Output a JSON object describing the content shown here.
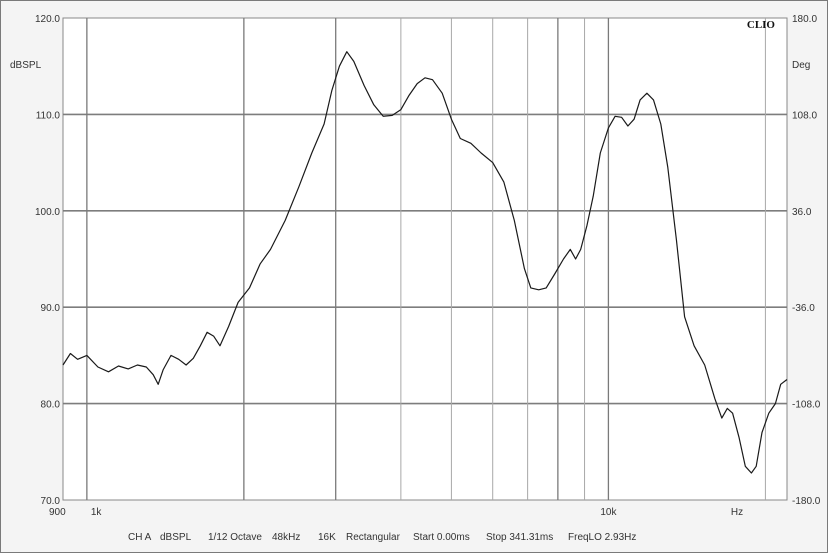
{
  "chart_data": {
    "type": "line",
    "brand": "CLIO",
    "x_scale": "log",
    "xlim": [
      900,
      22000
    ],
    "x_ticks": [
      {
        "value": 900,
        "label": "900"
      },
      {
        "value": 1000,
        "label": "1k"
      },
      {
        "value": 10000,
        "label": "10k"
      }
    ],
    "x_unit": "Hz",
    "x_gridlines": [
      1000,
      2000,
      3000,
      4000,
      5000,
      6000,
      7000,
      8000,
      9000,
      10000,
      20000
    ],
    "ylabel_left": "dBSPL",
    "ylim_left": [
      70,
      120
    ],
    "y_ticks_left": [
      "120.0",
      "110.0",
      "100.0",
      "90.0",
      "80.0",
      "70.0"
    ],
    "ylabel_right": "Deg",
    "ylim_right": [
      -180,
      180
    ],
    "y_ticks_right": [
      "180.0",
      "108.0",
      "36.0",
      "-36.0",
      "-108.0",
      "-180.0"
    ],
    "grid": true,
    "series": [
      {
        "color": "#1a1a1a",
        "points": [
          [
            900,
            84.0
          ],
          [
            930,
            85.2
          ],
          [
            960,
            84.6
          ],
          [
            1000,
            85.0
          ],
          [
            1050,
            83.8
          ],
          [
            1100,
            83.3
          ],
          [
            1150,
            83.9
          ],
          [
            1200,
            83.6
          ],
          [
            1250,
            84.0
          ],
          [
            1300,
            83.8
          ],
          [
            1340,
            83.0
          ],
          [
            1370,
            82.0
          ],
          [
            1400,
            83.5
          ],
          [
            1450,
            85.0
          ],
          [
            1500,
            84.6
          ],
          [
            1550,
            84.0
          ],
          [
            1600,
            84.7
          ],
          [
            1650,
            86.0
          ],
          [
            1700,
            87.4
          ],
          [
            1750,
            87.0
          ],
          [
            1800,
            86.0
          ],
          [
            1870,
            88.0
          ],
          [
            1950,
            90.5
          ],
          [
            2050,
            92.0
          ],
          [
            2150,
            94.5
          ],
          [
            2250,
            96.0
          ],
          [
            2400,
            99.0
          ],
          [
            2550,
            102.5
          ],
          [
            2700,
            106.0
          ],
          [
            2850,
            109.0
          ],
          [
            2950,
            112.5
          ],
          [
            3050,
            115.0
          ],
          [
            3150,
            116.5
          ],
          [
            3250,
            115.5
          ],
          [
            3400,
            113.0
          ],
          [
            3550,
            111.0
          ],
          [
            3700,
            109.8
          ],
          [
            3850,
            109.9
          ],
          [
            4000,
            110.5
          ],
          [
            4150,
            112.0
          ],
          [
            4300,
            113.2
          ],
          [
            4450,
            113.8
          ],
          [
            4600,
            113.6
          ],
          [
            4800,
            112.2
          ],
          [
            5000,
            109.5
          ],
          [
            5200,
            107.5
          ],
          [
            5450,
            107.0
          ],
          [
            5700,
            106.0
          ],
          [
            6000,
            105.0
          ],
          [
            6300,
            103.0
          ],
          [
            6600,
            99.0
          ],
          [
            6900,
            94.0
          ],
          [
            7100,
            92.0
          ],
          [
            7350,
            91.8
          ],
          [
            7600,
            92.0
          ],
          [
            7900,
            93.5
          ],
          [
            8200,
            95.0
          ],
          [
            8450,
            96.0
          ],
          [
            8650,
            95.0
          ],
          [
            8850,
            96.0
          ],
          [
            9100,
            98.5
          ],
          [
            9350,
            101.5
          ],
          [
            9650,
            106.0
          ],
          [
            10000,
            108.6
          ],
          [
            10300,
            109.8
          ],
          [
            10600,
            109.7
          ],
          [
            10900,
            108.8
          ],
          [
            11200,
            109.5
          ],
          [
            11500,
            111.5
          ],
          [
            11850,
            112.2
          ],
          [
            12200,
            111.5
          ],
          [
            12600,
            109.0
          ],
          [
            13000,
            104.5
          ],
          [
            13500,
            97.0
          ],
          [
            14000,
            89.0
          ],
          [
            14600,
            86.0
          ],
          [
            15300,
            84.0
          ],
          [
            16000,
            80.5
          ],
          [
            16500,
            78.5
          ],
          [
            16900,
            79.5
          ],
          [
            17300,
            79.0
          ],
          [
            17800,
            76.5
          ],
          [
            18300,
            73.5
          ],
          [
            18800,
            72.8
          ],
          [
            19200,
            73.5
          ],
          [
            19700,
            77.0
          ],
          [
            20300,
            79.0
          ],
          [
            20900,
            80.0
          ],
          [
            21400,
            82.0
          ],
          [
            22000,
            82.5
          ]
        ]
      }
    ]
  },
  "footer": {
    "channel": "CH A",
    "unit": "dBSPL",
    "smoothing": "1/12 Octave",
    "sample_rate": "48kHz",
    "fft_size": "16K",
    "window": "Rectangular",
    "start": "Start 0.00ms",
    "stop": "Stop 341.31ms",
    "freq_lo": "FreqLO 2.93Hz"
  }
}
